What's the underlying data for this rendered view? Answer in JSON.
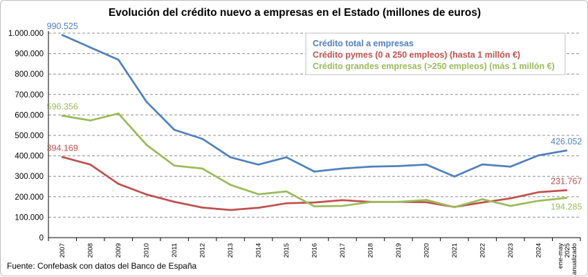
{
  "chart_data": {
    "type": "line",
    "title": "Evolución del crédito nuevo a empresas en el Estado (millones de euros)",
    "categories": [
      "2007",
      "2008",
      "2009",
      "2010",
      "2011",
      "2012",
      "2013",
      "2014",
      "2015",
      "2016",
      "2017",
      "2018",
      "2019",
      "2020",
      "2021",
      "2022",
      "2023",
      "2024",
      "ene-may 2025 anualizado"
    ],
    "ylim": [
      0,
      1000000
    ],
    "yticks": [
      0,
      100000,
      200000,
      300000,
      400000,
      500000,
      600000,
      700000,
      800000,
      900000,
      1000000
    ],
    "ytick_labels": [
      "0",
      "100.000",
      "200.000",
      "300.000",
      "400.000",
      "500.000",
      "600.000",
      "700.000",
      "800.000",
      "900.000",
      "1.000.000"
    ],
    "grid": "horizontal dashed",
    "legend_position": "top-right",
    "series": [
      {
        "name": "Crédito total a empresas",
        "color": "#4f81bd",
        "values": [
          990525,
          930000,
          870000,
          665000,
          527000,
          483000,
          393000,
          357000,
          393000,
          323000,
          338000,
          347000,
          350000,
          357000,
          299000,
          358000,
          347000,
          402000,
          426052
        ]
      },
      {
        "name": "Crédito pymes (0 a 250 empleos) (hasta 1 millón €)",
        "color": "#c0504d",
        "values": [
          394169,
          357000,
          263000,
          211000,
          175000,
          147000,
          135000,
          146000,
          168000,
          172000,
          183000,
          175000,
          175000,
          173000,
          150000,
          172000,
          192000,
          222000,
          231767
        ]
      },
      {
        "name": "Crédito grandes empresas (>250 empleos) (más 1 millón €)",
        "color": "#9bbb59",
        "values": [
          596356,
          573000,
          607000,
          454000,
          352000,
          338000,
          258000,
          212000,
          226000,
          153000,
          155000,
          174000,
          175000,
          184000,
          149000,
          188000,
          155000,
          180000,
          194285
        ]
      }
    ],
    "data_labels": [
      {
        "series": 0,
        "index": 0,
        "text": "990.525"
      },
      {
        "series": 1,
        "index": 0,
        "text": "394.169"
      },
      {
        "series": 2,
        "index": 0,
        "text": "596.356"
      },
      {
        "series": 0,
        "index": 18,
        "text": "426.052"
      },
      {
        "series": 1,
        "index": 18,
        "text": "231.767"
      },
      {
        "series": 2,
        "index": 18,
        "text": "194.285"
      }
    ]
  },
  "source": "Fuente: Confebask con datos del Banco de España"
}
